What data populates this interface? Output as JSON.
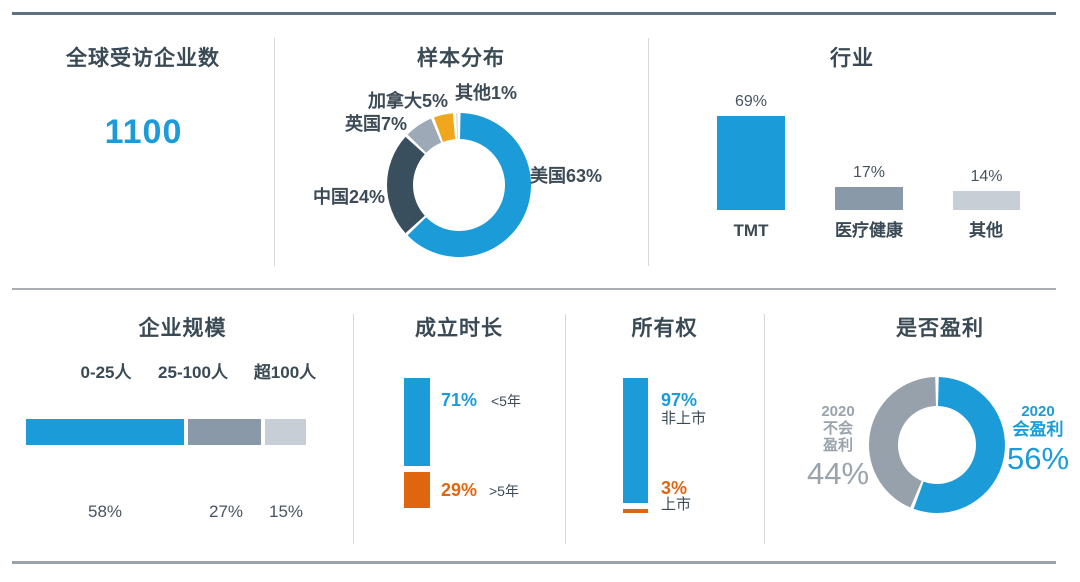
{
  "respondents": {
    "title": "全球受访企业数",
    "value": "1100"
  },
  "chart_data": [
    {
      "id": "sample_distribution",
      "type": "pie",
      "subtype": "donut",
      "title": "样本分布",
      "labels": [
        "美国",
        "中国",
        "英国",
        "加拿大",
        "其他"
      ],
      "values": [
        63,
        24,
        7,
        5,
        1
      ],
      "display_labels": [
        "美国63%",
        "中国24%",
        "英国7%",
        "加拿大5%",
        "其他1%"
      ],
      "colors": [
        "#1b9cd8",
        "#3a4f5d",
        "#9da9b6",
        "#f0a71e",
        "#d6d9dc"
      ],
      "start_angle_deg": 0,
      "direction": "clockwise",
      "hole_ratio": 0.64,
      "legend_position": "around-labels"
    },
    {
      "id": "industry",
      "type": "bar",
      "title": "行业",
      "categories": [
        "TMT",
        "医疗健康",
        "其他"
      ],
      "values": [
        69,
        17,
        14
      ],
      "value_labels": [
        "69%",
        "17%",
        "14%"
      ],
      "colors": [
        "#1b9cd8",
        "#8a99a8",
        "#c8ced6"
      ],
      "ylim": [
        0,
        100
      ],
      "grid": false
    },
    {
      "id": "company_size",
      "type": "bar",
      "subtype": "horizontal_stacked",
      "title": "企业规模",
      "categories": [
        "0-25人",
        "25-100人",
        "超100人"
      ],
      "values": [
        58,
        27,
        15
      ],
      "value_labels": [
        "58%",
        "27%",
        "15%"
      ],
      "colors": [
        "#1b9cd8",
        "#8a99a8",
        "#c8ced6"
      ]
    },
    {
      "id": "company_age",
      "type": "bar",
      "title": "成立时长",
      "categories": [
        "<5年",
        ">5年"
      ],
      "values": [
        71,
        29
      ],
      "value_labels": [
        "71%",
        "29%"
      ],
      "colors": [
        "#1b9cd8",
        "#df660f"
      ],
      "value_label_colors": [
        "#1b9cd8",
        "#df660f"
      ]
    },
    {
      "id": "ownership",
      "type": "bar",
      "title": "所有权",
      "categories": [
        "非上市",
        "上市"
      ],
      "values": [
        97,
        3
      ],
      "value_labels": [
        "97%",
        "3%"
      ],
      "colors": [
        "#1b9cd8",
        "#df660f"
      ],
      "value_label_colors": [
        "#1b9cd8",
        "#df660f"
      ]
    },
    {
      "id": "profitability",
      "type": "pie",
      "subtype": "donut",
      "title": "是否盈利",
      "labels": [
        "2020会盈利",
        "2020不会盈利"
      ],
      "values": [
        56,
        44
      ],
      "colors": [
        "#1b9cd8",
        "#97a1ab"
      ],
      "start_angle_deg": 0,
      "direction": "clockwise",
      "hole_ratio": 0.56,
      "right_label_lines": [
        "2020",
        "会盈利"
      ],
      "right_value": "56%",
      "left_label_lines": [
        "2020",
        "不会",
        "盈利"
      ],
      "left_value": "44%"
    }
  ]
}
